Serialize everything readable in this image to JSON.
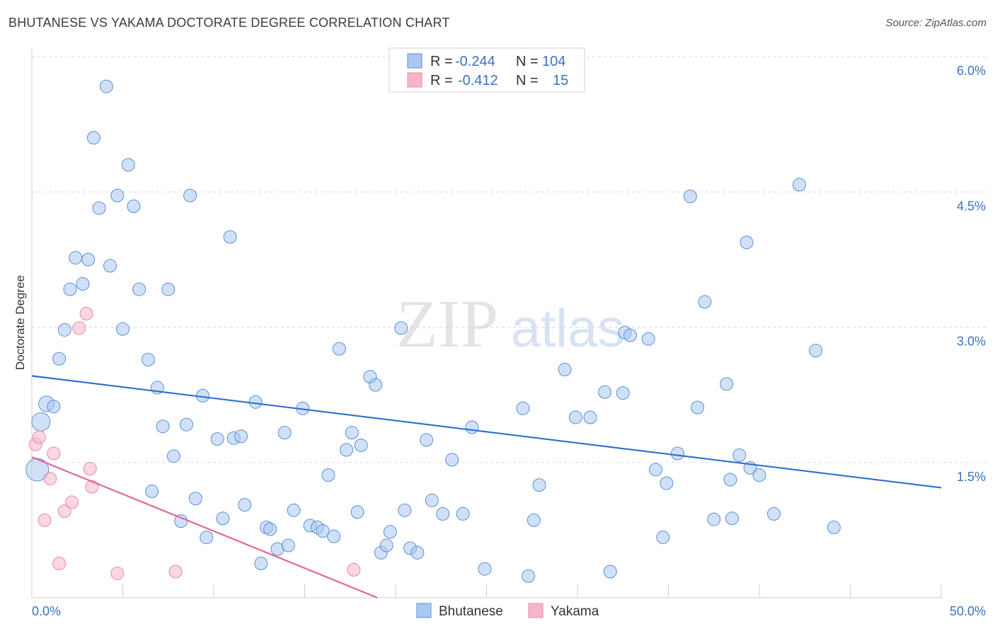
{
  "title": "BHUTANESE VS YAKAMA DOCTORATE DEGREE CORRELATION CHART",
  "source": "Source: ZipAtlas.com",
  "watermark": {
    "zip": "ZIP",
    "atlas": "atlas"
  },
  "colors": {
    "bhutanese_fill": "#a9c8f0",
    "bhutanese_stroke": "#5b8fd4",
    "bhutanese_line": "#2f6fcc",
    "yakama_fill": "#f6b6c8",
    "yakama_stroke": "#e889a6",
    "yakama_line": "#e0679a",
    "value_text": "#3a72c4",
    "grid": "#d9d9d9"
  },
  "legend": {
    "rows": [
      {
        "r_label": "R =",
        "r_value": "-0.244",
        "n_label": "N =",
        "n_value": "104"
      },
      {
        "r_label": "R =",
        "r_value": "-0.412",
        "n_label": "N =",
        "n_value": "15"
      }
    ]
  },
  "bottom_legend": [
    "Bhutanese",
    "Yakama"
  ],
  "chart_data": {
    "type": "scatter",
    "title": "BHUTANESE VS YAKAMA DOCTORATE DEGREE CORRELATION CHART",
    "xlabel": "",
    "ylabel": "Doctorate Degree",
    "xlim": [
      0,
      50
    ],
    "ylim": [
      0,
      6.0
    ],
    "x_tick_labels": [
      "0.0%",
      "50.0%"
    ],
    "y_ticks": [
      1.5,
      3.0,
      4.5,
      6.0
    ],
    "y_tick_labels": [
      "1.5%",
      "3.0%",
      "4.5%",
      "6.0%"
    ],
    "series": [
      {
        "name": "Bhutanese",
        "R": -0.244,
        "N": 104,
        "trend": [
          [
            0,
            2.46
          ],
          [
            50,
            1.22
          ]
        ],
        "points": [
          [
            0.3,
            1.42,
            16
          ],
          [
            0.5,
            1.95,
            13
          ],
          [
            0.8,
            2.15,
            11
          ],
          [
            1.2,
            2.12,
            9
          ],
          [
            1.5,
            2.65,
            9
          ],
          [
            1.8,
            2.97,
            9
          ],
          [
            2.1,
            3.42,
            9
          ],
          [
            2.4,
            3.77,
            9
          ],
          [
            2.8,
            3.48,
            9
          ],
          [
            3.1,
            3.75,
            9
          ],
          [
            3.4,
            5.1,
            9
          ],
          [
            3.7,
            4.32,
            9
          ],
          [
            4.1,
            5.67,
            9
          ],
          [
            4.3,
            3.68,
            9
          ],
          [
            4.7,
            4.46,
            9
          ],
          [
            5.0,
            2.98,
            9
          ],
          [
            5.3,
            4.8,
            9
          ],
          [
            5.6,
            4.34,
            9
          ],
          [
            5.9,
            3.42,
            9
          ],
          [
            6.4,
            2.64,
            9
          ],
          [
            6.6,
            1.18,
            9
          ],
          [
            6.9,
            2.33,
            9
          ],
          [
            7.2,
            1.9,
            9
          ],
          [
            7.5,
            3.42,
            9
          ],
          [
            7.8,
            1.57,
            9
          ],
          [
            8.2,
            0.85,
            9
          ],
          [
            8.5,
            1.92,
            9
          ],
          [
            8.7,
            4.46,
            9
          ],
          [
            9.0,
            1.1,
            9
          ],
          [
            9.4,
            2.24,
            9
          ],
          [
            9.6,
            0.67,
            9
          ],
          [
            10.2,
            1.76,
            9
          ],
          [
            10.5,
            0.88,
            9
          ],
          [
            10.9,
            4.0,
            9
          ],
          [
            11.1,
            1.77,
            9
          ],
          [
            11.5,
            1.79,
            9
          ],
          [
            11.7,
            1.03,
            9
          ],
          [
            12.3,
            2.17,
            9
          ],
          [
            12.6,
            0.38,
            9
          ],
          [
            12.9,
            0.78,
            9
          ],
          [
            13.1,
            0.76,
            9
          ],
          [
            13.5,
            0.54,
            9
          ],
          [
            13.9,
            1.83,
            9
          ],
          [
            14.1,
            0.58,
            9
          ],
          [
            14.4,
            0.97,
            9
          ],
          [
            14.9,
            2.1,
            9
          ],
          [
            15.3,
            0.8,
            9
          ],
          [
            15.7,
            0.78,
            9
          ],
          [
            16.0,
            0.74,
            9
          ],
          [
            16.3,
            1.36,
            9
          ],
          [
            16.6,
            0.68,
            9
          ],
          [
            16.9,
            2.76,
            9
          ],
          [
            17.3,
            1.64,
            9
          ],
          [
            17.6,
            1.83,
            9
          ],
          [
            17.9,
            0.95,
            9
          ],
          [
            18.1,
            1.69,
            9
          ],
          [
            18.6,
            2.45,
            9
          ],
          [
            18.9,
            2.36,
            9
          ],
          [
            19.2,
            0.5,
            9
          ],
          [
            19.5,
            0.58,
            9
          ],
          [
            19.7,
            0.73,
            9
          ],
          [
            20.3,
            2.99,
            9
          ],
          [
            20.5,
            0.97,
            9
          ],
          [
            20.8,
            0.55,
            9
          ],
          [
            21.2,
            0.5,
            9
          ],
          [
            21.7,
            1.75,
            9
          ],
          [
            22.0,
            1.08,
            9
          ],
          [
            22.6,
            0.93,
            9
          ],
          [
            23.1,
            1.53,
            9
          ],
          [
            23.7,
            0.93,
            9
          ],
          [
            24.2,
            1.89,
            9
          ],
          [
            24.9,
            0.32,
            9
          ],
          [
            27.0,
            2.1,
            9
          ],
          [
            27.3,
            0.24,
            9
          ],
          [
            27.6,
            0.86,
            9
          ],
          [
            27.9,
            1.25,
            9
          ],
          [
            29.3,
            2.53,
            9
          ],
          [
            29.9,
            2.0,
            9
          ],
          [
            30.7,
            2.0,
            9
          ],
          [
            31.5,
            2.28,
            9
          ],
          [
            31.8,
            0.29,
            9
          ],
          [
            32.5,
            2.27,
            9
          ],
          [
            32.6,
            2.94,
            9
          ],
          [
            32.9,
            2.91,
            9
          ],
          [
            33.9,
            2.87,
            9
          ],
          [
            34.7,
            0.67,
            9
          ],
          [
            34.3,
            1.42,
            9
          ],
          [
            34.9,
            1.27,
            9
          ],
          [
            35.5,
            1.6,
            9
          ],
          [
            36.2,
            4.45,
            9
          ],
          [
            36.6,
            2.11,
            9
          ],
          [
            37.0,
            3.28,
            9
          ],
          [
            37.5,
            0.87,
            9
          ],
          [
            38.2,
            2.37,
            9
          ],
          [
            38.4,
            1.31,
            9
          ],
          [
            38.5,
            0.88,
            9
          ],
          [
            38.9,
            1.58,
            9
          ],
          [
            39.3,
            3.94,
            9
          ],
          [
            39.5,
            1.44,
            9
          ],
          [
            40.0,
            1.36,
            9
          ],
          [
            40.8,
            0.93,
            9
          ],
          [
            42.2,
            4.58,
            9
          ],
          [
            43.1,
            2.74,
            9
          ],
          [
            44.1,
            0.78,
            9
          ]
        ]
      },
      {
        "name": "Yakama",
        "R": -0.412,
        "N": 15,
        "trend": [
          [
            0,
            1.56
          ],
          [
            19,
            0.0
          ]
        ],
        "points": [
          [
            0.2,
            1.7,
            9
          ],
          [
            0.4,
            1.78,
            9
          ],
          [
            0.7,
            0.86,
            9
          ],
          [
            1.0,
            1.32,
            9
          ],
          [
            1.2,
            1.6,
            9
          ],
          [
            1.5,
            0.38,
            9
          ],
          [
            1.8,
            0.96,
            9
          ],
          [
            2.2,
            1.06,
            9
          ],
          [
            2.6,
            2.99,
            9
          ],
          [
            3.0,
            3.15,
            9
          ],
          [
            3.2,
            1.43,
            9
          ],
          [
            3.3,
            1.23,
            9
          ],
          [
            4.7,
            0.27,
            9
          ],
          [
            7.9,
            0.29,
            9
          ],
          [
            17.7,
            0.31,
            9
          ]
        ]
      }
    ]
  }
}
